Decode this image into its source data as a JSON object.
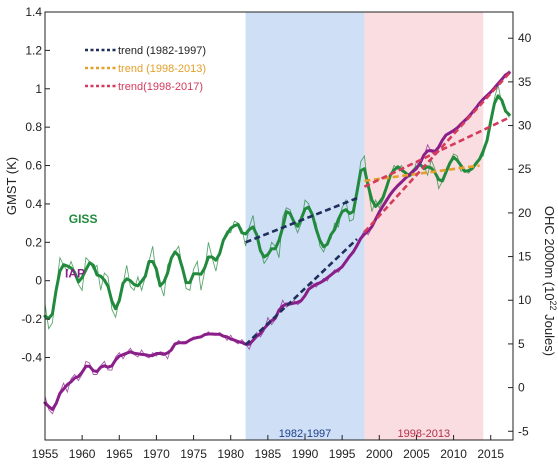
{
  "chart_data": {
    "type": "line",
    "xlim": [
      1955,
      2018
    ],
    "x_ticks": [
      1955,
      1960,
      1965,
      1970,
      1975,
      1980,
      1985,
      1990,
      1995,
      2000,
      2005,
      2010,
      2015
    ],
    "x_tick_labels": [
      "1955",
      "1960",
      "1965",
      "1970",
      "1975",
      "1980",
      "1985",
      "1990",
      "1995",
      "2000",
      "2005",
      "2010",
      "2015"
    ],
    "left_axis": {
      "label": "GMST (K)",
      "ylim": [
        -0.83,
        1.4
      ],
      "ticks": [
        -0.4,
        -0.2,
        0,
        0.2,
        0.4,
        0.6,
        0.8,
        1,
        1.2,
        1.4
      ],
      "tick_labels": [
        "-0.4",
        "-0.2",
        "0",
        "0.2",
        "0.4",
        "0.6",
        "0.8",
        "1",
        "1.2",
        "1.4"
      ]
    },
    "right_axis": {
      "label_prefix": "OHC 2000m (10",
      "label_exp": "22",
      "label_suffix": " Joules)",
      "ylim": [
        -6,
        43
      ],
      "ticks": [
        -5,
        0,
        5,
        10,
        15,
        20,
        25,
        30,
        35,
        40
      ],
      "tick_labels": [
        "-5",
        "0",
        "5",
        "10",
        "15",
        "20",
        "25",
        "30",
        "35",
        "40"
      ]
    },
    "shaded_periods": [
      {
        "label": "1982-1997",
        "start": 1982,
        "end": 1998,
        "color": "#cfe0f6"
      },
      {
        "label": "1998-2013",
        "start": 1998,
        "end": 2014,
        "color": "#f9dde0"
      }
    ],
    "series": [
      {
        "name": "GISS",
        "axis": "left",
        "color": "#218a3c",
        "x": [
          1955,
          1955.5,
          1956,
          1956.5,
          1957,
          1957.5,
          1958,
          1958.5,
          1959,
          1959.5,
          1960,
          1960.5,
          1961,
          1961.5,
          1962,
          1962.5,
          1963,
          1963.5,
          1964,
          1964.5,
          1965,
          1965.5,
          1966,
          1966.5,
          1967,
          1967.5,
          1968,
          1968.5,
          1969,
          1969.5,
          1970,
          1970.5,
          1971,
          1971.5,
          1972,
          1972.5,
          1973,
          1973.5,
          1974,
          1974.5,
          1975,
          1975.5,
          1976,
          1976.5,
          1977,
          1977.5,
          1978,
          1978.5,
          1979,
          1979.5,
          1980,
          1980.5,
          1981,
          1981.5,
          1982,
          1982.5,
          1983,
          1983.5,
          1984,
          1984.5,
          1985,
          1985.5,
          1986,
          1986.5,
          1987,
          1987.5,
          1988,
          1988.5,
          1989,
          1989.5,
          1990,
          1990.5,
          1991,
          1991.5,
          1992,
          1992.5,
          1993,
          1993.5,
          1994,
          1994.5,
          1995,
          1995.5,
          1996,
          1996.5,
          1997,
          1997.5,
          1998,
          1998.5,
          1999,
          1999.5,
          2000,
          2000.5,
          2001,
          2001.5,
          2002,
          2002.5,
          2003,
          2003.5,
          2004,
          2004.5,
          2005,
          2005.5,
          2006,
          2006.5,
          2007,
          2007.5,
          2008,
          2008.5,
          2009,
          2009.5,
          2010,
          2010.5,
          2011,
          2011.5,
          2012,
          2012.5,
          2013,
          2013.5,
          2014,
          2014.5,
          2015,
          2015.5,
          2016,
          2016.5,
          2017,
          2017.5
        ],
        "y": [
          -0.12,
          -0.25,
          -0.22,
          -0.05,
          0.12,
          0.08,
          0.05,
          0.1,
          0.05,
          -0.02,
          -0.05,
          0.12,
          0.1,
          0.06,
          0.08,
          -0.05,
          0.04,
          0.02,
          -0.15,
          -0.19,
          -0.1,
          -0.02,
          0.08,
          -0.03,
          -0.05,
          0.02,
          -0.05,
          0.02,
          0.1,
          0.18,
          0.02,
          -0.02,
          -0.08,
          0.08,
          0.12,
          0.15,
          0.18,
          0.06,
          -0.04,
          -0.05,
          0.06,
          0.1,
          -0.05,
          0.05,
          0.2,
          0.12,
          0.05,
          0.15,
          0.22,
          0.26,
          0.25,
          0.31,
          0.3,
          0.27,
          0.18,
          0.28,
          0.34,
          0.22,
          0.16,
          0.09,
          0.12,
          0.2,
          0.18,
          0.12,
          0.33,
          0.38,
          0.37,
          0.3,
          0.25,
          0.3,
          0.42,
          0.4,
          0.33,
          0.3,
          0.18,
          0.15,
          0.2,
          0.22,
          0.3,
          0.28,
          0.38,
          0.42,
          0.31,
          0.32,
          0.45,
          0.62,
          0.65,
          0.48,
          0.36,
          0.42,
          0.38,
          0.42,
          0.5,
          0.55,
          0.6,
          0.58,
          0.6,
          0.55,
          0.54,
          0.55,
          0.62,
          0.6,
          0.6,
          0.55,
          0.63,
          0.58,
          0.48,
          0.52,
          0.56,
          0.62,
          0.66,
          0.65,
          0.57,
          0.58,
          0.56,
          0.58,
          0.61,
          0.64,
          0.65,
          0.74,
          0.8,
          0.95,
          1.02,
          0.92,
          0.88,
          0.85
        ]
      },
      {
        "name": "IAP",
        "axis": "right",
        "color": "#8a1f8a",
        "x": [
          1955,
          1955.5,
          1956,
          1956.5,
          1957,
          1957.5,
          1958,
          1958.5,
          1959,
          1959.5,
          1960,
          1960.5,
          1961,
          1961.5,
          1962,
          1962.5,
          1963,
          1963.5,
          1964,
          1964.5,
          1965,
          1965.5,
          1966,
          1966.5,
          1967,
          1967.5,
          1968,
          1968.5,
          1969,
          1969.5,
          1970,
          1970.5,
          1971,
          1971.5,
          1972,
          1972.5,
          1973,
          1973.5,
          1974,
          1974.5,
          1975,
          1975.5,
          1976,
          1976.5,
          1977,
          1977.5,
          1978,
          1978.5,
          1979,
          1979.5,
          1980,
          1980.5,
          1981,
          1981.5,
          1982,
          1982.5,
          1983,
          1983.5,
          1984,
          1984.5,
          1985,
          1985.5,
          1986,
          1986.5,
          1987,
          1987.5,
          1988,
          1988.5,
          1989,
          1989.5,
          1990,
          1990.5,
          1991,
          1991.5,
          1992,
          1992.5,
          1993,
          1993.5,
          1994,
          1994.5,
          1995,
          1995.5,
          1996,
          1996.5,
          1997,
          1997.5,
          1998,
          1998.5,
          1999,
          1999.5,
          2000,
          2000.5,
          2001,
          2001.5,
          2002,
          2002.5,
          2003,
          2003.5,
          2004,
          2004.5,
          2005,
          2005.5,
          2006,
          2006.5,
          2007,
          2007.5,
          2008,
          2008.5,
          2009,
          2009.5,
          2010,
          2010.5,
          2011,
          2011.5,
          2012,
          2012.5,
          2013,
          2013.5,
          2014,
          2014.5,
          2015,
          2015.5,
          2016,
          2016.5,
          2017,
          2017.5
        ],
        "y": [
          -1.0,
          -2.5,
          -3.0,
          -2.0,
          -0.5,
          0.5,
          -0.5,
          1.0,
          1.5,
          0.8,
          1.5,
          3.0,
          2.8,
          1.5,
          1.5,
          2.5,
          3.0,
          2.0,
          2.0,
          3.5,
          4.0,
          3.3,
          4.0,
          4.5,
          3.8,
          3.5,
          4.3,
          3.6,
          3.4,
          4.0,
          3.6,
          4.1,
          4.0,
          3.3,
          4.6,
          5.0,
          5.4,
          5.0,
          5.0,
          5.5,
          5.8,
          5.6,
          5.8,
          6.0,
          6.4,
          6.0,
          6.0,
          6.3,
          6.0,
          5.4,
          6.0,
          5.3,
          5.0,
          5.5,
          5.0,
          4.4,
          5.5,
          6.3,
          5.8,
          6.5,
          8.0,
          7.2,
          7.8,
          8.8,
          10.0,
          9.2,
          9.5,
          10.0,
          9.5,
          9.8,
          10.6,
          11.2,
          12.0,
          11.5,
          12.0,
          12.5,
          12.2,
          13.0,
          13.5,
          13.2,
          13.8,
          14.5,
          15.0,
          15.6,
          16.0,
          17.2,
          18.0,
          17.5,
          18.3,
          19.5,
          20.0,
          20.8,
          21.6,
          22.0,
          22.8,
          23.2,
          23.4,
          24.0,
          24.5,
          24.6,
          25.0,
          25.6,
          26.5,
          27.8,
          27.0,
          26.6,
          27.5,
          28.5,
          29.0,
          29.3,
          29.2,
          29.8,
          30.2,
          30.5,
          31.0,
          31.4,
          32.0,
          32.6,
          33.1,
          33.4,
          33.8,
          34.3,
          34.8,
          35.3,
          35.8,
          36.3
        ]
      }
    ],
    "series_labels": [
      {
        "name": "GISS",
        "text": "GISS",
        "x": 1958.2,
        "y": 0.3,
        "axis": "left"
      },
      {
        "name": "IAP",
        "text": "IAP",
        "x": 1957.7,
        "y": 12.6,
        "axis": "right"
      }
    ],
    "trends": [
      {
        "name": "trend (1982-1997)",
        "color": "#1f2e5c",
        "axis": "left",
        "x": [
          1982,
          1997
        ],
        "y": [
          0.2,
          0.43
        ]
      },
      {
        "name": "trend (1998-2013)",
        "color": "#e3a02a",
        "axis": "left",
        "x": [
          1998,
          2013.5
        ],
        "y": [
          0.52,
          0.6
        ]
      },
      {
        "name": "trend(1998-2017)",
        "color": "#d63a5c",
        "axis": "left",
        "x": [
          1998,
          2017.5
        ],
        "y": [
          0.49,
          0.85
        ]
      },
      {
        "name": "trend (1982-1997)",
        "color": "#1f2e5c",
        "axis": "right",
        "x": [
          1982,
          1997
        ],
        "y": [
          4.9,
          17.0
        ]
      },
      {
        "name": "trend(1998-2017)",
        "color": "#d63a5c",
        "axis": "right",
        "x": [
          1998,
          2017.5
        ],
        "y": [
          17.8,
          36.0
        ]
      }
    ],
    "legend": {
      "placement": "top-left",
      "entries": [
        {
          "text": "trend (1982-1997)",
          "color": "#1f2e5c",
          "text_color": "#222222"
        },
        {
          "text": "trend (1998-2013)",
          "color": "#e3a02a",
          "text_color": "#e3a02a"
        },
        {
          "text": "trend(1998-2017)",
          "color": "#d63a5c",
          "text_color": "#d63a5c"
        }
      ]
    }
  }
}
